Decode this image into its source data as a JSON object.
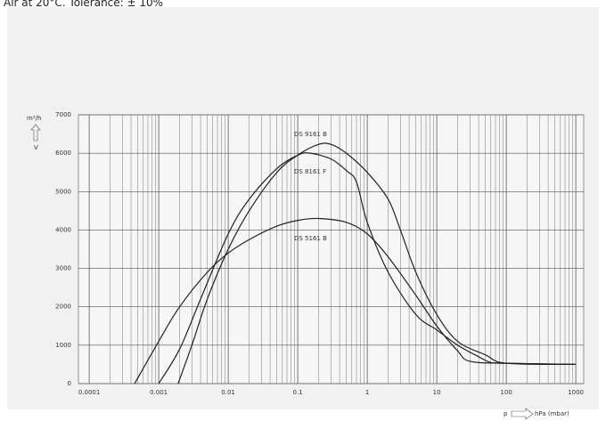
{
  "chart_data": {
    "type": "line",
    "title": "Air at 20°C. Tolerance: ± 10%",
    "y_unit": "m³/h",
    "y_label": "V",
    "x_label": "p",
    "x_unit": "hPa (mbar)",
    "xscale": "log",
    "grid": true,
    "color": "#222",
    "xlim": [
      7e-05,
      1300
    ],
    "xticks": [
      0.0001,
      0.001,
      0.01,
      0.1,
      1,
      10,
      100,
      1000
    ],
    "xminor": [
      0.0002,
      0.0003,
      0.0004,
      0.0005,
      0.0006,
      0.0007,
      0.0008,
      0.0009,
      0.002,
      0.003,
      0.004,
      0.005,
      0.006,
      0.007,
      0.008,
      0.009,
      0.02,
      0.03,
      0.04,
      0.05,
      0.06,
      0.07,
      0.08,
      0.09,
      0.2,
      0.3,
      0.4,
      0.5,
      0.6,
      0.7,
      0.8,
      0.9,
      2,
      3,
      4,
      5,
      6,
      7,
      8,
      9,
      20,
      30,
      40,
      50,
      60,
      70,
      80,
      90,
      200,
      300,
      400,
      500,
      600,
      700,
      800,
      900
    ],
    "ylim": [
      0,
      7000
    ],
    "yticks": [
      0,
      1000,
      2000,
      3000,
      4000,
      5000,
      6000,
      7000
    ],
    "series": [
      {
        "name": "DS 9161 B",
        "color": "#222",
        "x": [
          0.0019,
          0.003,
          0.005,
          0.01,
          0.02,
          0.05,
          0.1,
          0.2,
          0.3,
          0.5,
          1,
          2,
          3,
          5,
          10,
          20,
          50,
          100,
          1000
        ],
        "values": [
          0,
          1000,
          2200,
          3500,
          4500,
          5500,
          5950,
          6230,
          6230,
          6000,
          5500,
          4800,
          4000,
          2900,
          1800,
          1100,
          750,
          530,
          500
        ]
      },
      {
        "name": "DS 8161 F",
        "color": "#222",
        "x": [
          0.001,
          0.002,
          0.004,
          0.01,
          0.02,
          0.05,
          0.1,
          0.15,
          0.3,
          0.5,
          0.7,
          1,
          2,
          5,
          10,
          20,
          40,
          60,
          100,
          1000
        ],
        "values": [
          0,
          900,
          2200,
          3900,
          4800,
          5600,
          5950,
          6000,
          5850,
          5550,
          5250,
          4200,
          2900,
          1800,
          1400,
          1000,
          700,
          550,
          530,
          500
        ]
      },
      {
        "name": "DS 5161 B",
        "color": "#222",
        "x": [
          0.00045,
          0.001,
          0.002,
          0.005,
          0.01,
          0.02,
          0.05,
          0.1,
          0.2,
          0.5,
          1,
          2,
          5,
          10,
          20,
          30,
          100,
          1000
        ],
        "values": [
          0,
          1100,
          2000,
          2900,
          3400,
          3750,
          4100,
          4250,
          4300,
          4200,
          3900,
          3300,
          2300,
          1500,
          850,
          580,
          530,
          500
        ]
      }
    ]
  }
}
